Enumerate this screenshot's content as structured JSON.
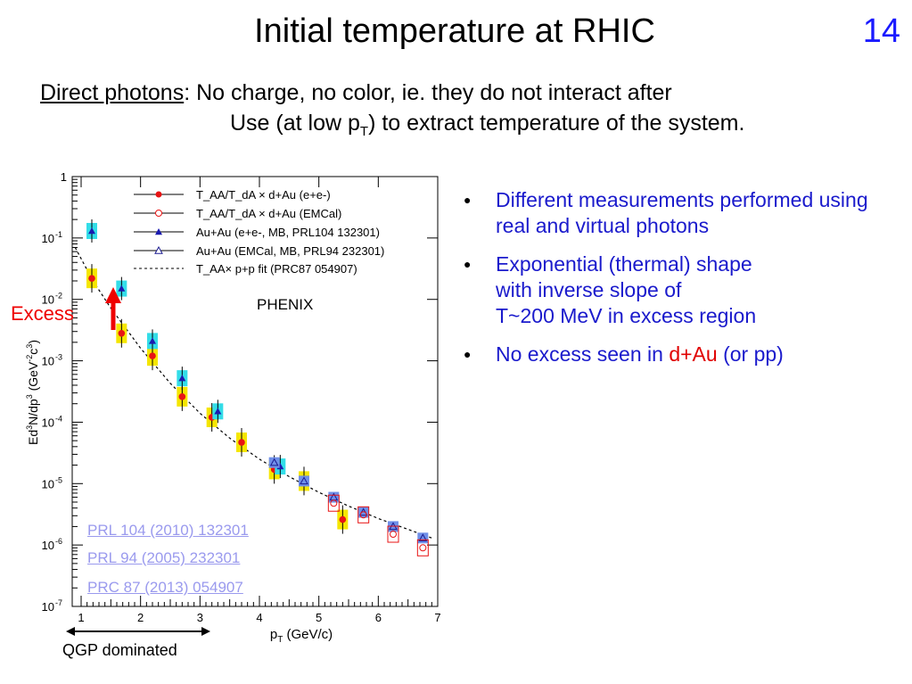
{
  "title": "Initial temperature at RHIC",
  "slide_number": "14",
  "intro": {
    "term": "Direct photons",
    "line1_rest": ": No charge, no color, ie. they do not interact after",
    "line2_a": "Use (at low p",
    "line2_sub": "T",
    "line2_b": ") to extract temperature of the system."
  },
  "bullets": [
    {
      "text": "Different measurements performed using real and virtual photons"
    },
    {
      "text_a": "Exponential (thermal) shape",
      "text_b": "with inverse slope of",
      "text_c": "T~200 MeV in excess region"
    },
    {
      "text_a": "No excess seen in ",
      "highlight": "d+Au",
      "text_b": " (or pp)"
    }
  ],
  "annotations": {
    "excess": "Excess",
    "phenix": "PHENIX",
    "qgp": "QGP dominated",
    "refs": [
      "PRL 104 (2010) 132301",
      "PRL 94 (2005) 232301",
      "PRC 87 (2013) 054907"
    ]
  },
  "colors": {
    "accent_blue": "#1a1acc",
    "excess_red": "#ee0000",
    "cyan_box": "#33dde8",
    "yellow_box": "#f5e600",
    "marker_red": "#e81414",
    "marker_blue": "#1a1ab0"
  },
  "chart_data": {
    "type": "scatter",
    "xlabel": "p_T (GeV/c)",
    "ylabel": "Ed^3N/dp^3 (GeV^-2 c^3)",
    "xlim": [
      0.85,
      7
    ],
    "ylim_log10": [
      -7,
      0
    ],
    "y_scale": "log",
    "x_ticks": [
      "1",
      "2",
      "3",
      "4",
      "5",
      "6",
      "7"
    ],
    "y_ticks": [
      {
        "label": "1",
        "exp": 0
      },
      {
        "label": "10",
        "sup": "-1",
        "exp": -1
      },
      {
        "label": "10",
        "sup": "-2",
        "exp": -2
      },
      {
        "label": "10",
        "sup": "-3",
        "exp": -3
      },
      {
        "label": "10",
        "sup": "-4",
        "exp": -4
      },
      {
        "label": "10",
        "sup": "-5",
        "exp": -5
      },
      {
        "label": "10",
        "sup": "-6",
        "exp": -6
      },
      {
        "label": "10",
        "sup": "-7",
        "exp": -7
      }
    ],
    "legend_position": "top-right",
    "series": [
      {
        "name": "T_AA/T_dA × d+Au (e+e-)",
        "marker": "filled-circle",
        "box": "yellow",
        "x": [
          1.18,
          1.68,
          2.2,
          2.7,
          3.2,
          3.7,
          4.25,
          4.75,
          5.4
        ],
        "y": [
          0.022,
          0.0028,
          0.0012,
          0.00026,
          0.00012,
          4.7e-05,
          1.7e-05,
          1.1e-05,
          2.6e-06
        ]
      },
      {
        "name": "T_AA/T_dA × d+Au (EMCal)",
        "marker": "open-circle",
        "box": "red-outline",
        "x": [
          5.25,
          5.75,
          6.25,
          6.75
        ],
        "y": [
          4.8e-06,
          3.1e-06,
          1.5e-06,
          9e-07
        ]
      },
      {
        "name": "Au+Au (e+e-, MB, PRL104 132301)",
        "marker": "filled-triangle",
        "box": "cyan",
        "x": [
          1.18,
          1.68,
          2.2,
          2.7,
          3.3,
          4.35
        ],
        "y": [
          0.13,
          0.015,
          0.0021,
          0.00052,
          0.00015,
          1.9e-05
        ]
      },
      {
        "name": "Au+Au (EMCal, MB, PRL94  232301)",
        "marker": "open-triangle",
        "box": "blue",
        "x": [
          4.25,
          4.75,
          5.25,
          5.75,
          6.25,
          6.75
        ],
        "y": [
          2.2e-05,
          1.1e-05,
          6e-06,
          3.4e-06,
          2e-06,
          1.3e-06
        ]
      },
      {
        "name": "T_AA× p+p fit (PRC87 054907)",
        "marker": "dashed-line",
        "x": [
          0.9,
          1.2,
          1.5,
          2,
          2.5,
          3,
          3.5,
          4,
          4.5,
          5,
          5.5,
          6,
          6.5,
          6.9
        ],
        "y": [
          0.07,
          0.02,
          0.0072,
          0.0016,
          0.00043,
          0.00014,
          5.5e-05,
          2.5e-05,
          1.3e-05,
          7.2e-06,
          4.3e-06,
          2.7e-06,
          1.8e-06,
          1.3e-06
        ]
      }
    ]
  }
}
